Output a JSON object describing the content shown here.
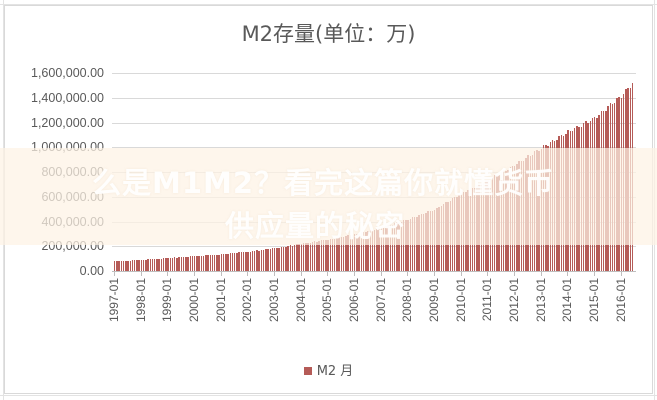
{
  "chart_data": {
    "type": "bar",
    "title": "M2存量(单位：万)",
    "xlabel": "",
    "ylabel": "",
    "ylim": [
      0,
      1600000
    ],
    "y_ticks": [
      "0.00",
      "200,000.00",
      "400,000.00",
      "600,000.00",
      "800,000.00",
      "1,000,000.00",
      "1,200,000.00",
      "1,400,000.00",
      "1,600,000.00"
    ],
    "x_tick_labels": [
      "1997-01",
      "1998-01",
      "1999-01",
      "2000-01",
      "2001-01",
      "2002-01",
      "2003-01",
      "2004-01",
      "2005-01",
      "2006-01",
      "2007-01",
      "2008-01",
      "2009-01",
      "2010-01",
      "2011-01",
      "2012-01",
      "2013-01",
      "2014-01",
      "2015-01",
      "2016-01"
    ],
    "grid": true,
    "legend_position": "bottom",
    "series": [
      {
        "name": "M2 月",
        "color": "#b55b57",
        "frequency": "monthly",
        "start": "1997-01",
        "end": "2016-06",
        "yearly_start_values": {
          "1997-01": 78000,
          "1998-01": 90000,
          "1999-01": 104000,
          "2000-01": 120000,
          "2001-01": 135000,
          "2002-01": 155000,
          "2003-01": 183000,
          "2004-01": 220000,
          "2005-01": 253000,
          "2006-01": 298000,
          "2007-01": 350000,
          "2008-01": 418000,
          "2009-01": 496000,
          "2010-01": 625000,
          "2011-01": 733000,
          "2012-01": 856000,
          "2013-01": 993000,
          "2014-01": 1123000,
          "2015-01": 1236000,
          "2016-01": 1417000,
          "2016-06": 1515000
        }
      }
    ]
  },
  "chart": {
    "title": "M2存量(单位：万)",
    "legend_label": "M2 月"
  },
  "watermark": {
    "line1": "么是M1M2？看完这篇你就懂货币",
    "line2": "供应量的秘密"
  }
}
